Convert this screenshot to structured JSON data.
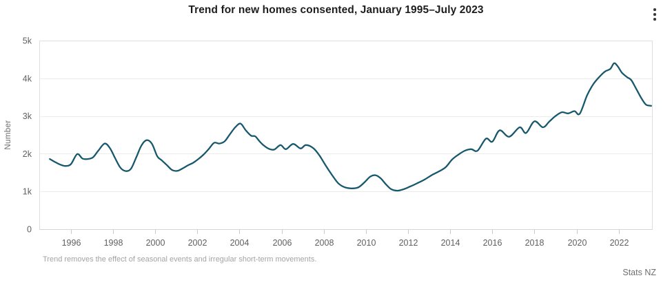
{
  "header": {
    "title": "Trend for new homes consented, January 1995–July 2023"
  },
  "menu": {
    "icon": "kebab-menu-icon"
  },
  "footer": {
    "note": "Trend removes the effect of seasonal events and irregular short-term movements.",
    "attribution": "Stats NZ"
  },
  "colors": {
    "line": "#17586c",
    "grid": "#ececec",
    "border": "#dedede",
    "axis_line": "#d4d4d4",
    "tick_mark": "#c9c9c9",
    "tick_text": "#5f5f5f",
    "title_text": "#1d1d1d",
    "footnote_text": "#a3a3a3"
  },
  "chart_data": {
    "type": "line",
    "title": "Trend for new homes consented, January 1995–July 2023",
    "xlabel": "",
    "ylabel": "Number",
    "legend": "none",
    "grid": true,
    "x_domain": [
      1994.5,
      2023.58
    ],
    "y_domain": [
      0,
      5000
    ],
    "x_ticks": [
      {
        "v": 1996,
        "label": "1996"
      },
      {
        "v": 1998,
        "label": "1998"
      },
      {
        "v": 2000,
        "label": "2000"
      },
      {
        "v": 2002,
        "label": "2002"
      },
      {
        "v": 2004,
        "label": "2004"
      },
      {
        "v": 2006,
        "label": "2006"
      },
      {
        "v": 2008,
        "label": "2008"
      },
      {
        "v": 2010,
        "label": "2010"
      },
      {
        "v": 2012,
        "label": "2012"
      },
      {
        "v": 2014,
        "label": "2014"
      },
      {
        "v": 2016,
        "label": "2016"
      },
      {
        "v": 2018,
        "label": "2018"
      },
      {
        "v": 2020,
        "label": "2020"
      },
      {
        "v": 2022,
        "label": "2022"
      }
    ],
    "y_ticks": [
      {
        "v": 0,
        "label": "0"
      },
      {
        "v": 1000,
        "label": "1k"
      },
      {
        "v": 2000,
        "label": "2k"
      },
      {
        "v": 3000,
        "label": "3k"
      },
      {
        "v": 4000,
        "label": "4k"
      },
      {
        "v": 5000,
        "label": "5k"
      }
    ],
    "series": [
      {
        "name": "Trend",
        "color": "#17586c",
        "x": [
          1995.0,
          1995.25,
          1995.5,
          1995.75,
          1996.0,
          1996.3,
          1996.55,
          1996.8,
          1997.05,
          1997.3,
          1997.6,
          1997.85,
          1998.1,
          1998.35,
          1998.6,
          1998.85,
          1999.1,
          1999.35,
          1999.6,
          1999.85,
          2000.1,
          2000.3,
          2000.55,
          2000.8,
          2001.05,
          2001.3,
          2001.55,
          2001.8,
          2002.05,
          2002.3,
          2002.55,
          2002.8,
          2003.05,
          2003.3,
          2003.55,
          2003.8,
          2004.05,
          2004.3,
          2004.55,
          2004.75,
          2004.95,
          2005.15,
          2005.4,
          2005.65,
          2005.95,
          2006.2,
          2006.55,
          2006.9,
          2007.15,
          2007.5,
          2007.8,
          2008.1,
          2008.4,
          2008.7,
          2009.0,
          2009.35,
          2009.65,
          2009.95,
          2010.2,
          2010.45,
          2010.7,
          2010.95,
          2011.2,
          2011.5,
          2011.8,
          2012.1,
          2012.45,
          2012.8,
          2013.15,
          2013.5,
          2013.8,
          2014.1,
          2014.4,
          2014.7,
          2015.0,
          2015.3,
          2015.7,
          2016.0,
          2016.35,
          2016.8,
          2017.3,
          2017.6,
          2018.0,
          2018.4,
          2018.7,
          2019.0,
          2019.3,
          2019.6,
          2019.9,
          2020.15,
          2020.5,
          2020.8,
          2021.1,
          2021.35,
          2021.6,
          2021.78,
          2021.95,
          2022.15,
          2022.4,
          2022.6,
          2022.85,
          2023.1,
          2023.3,
          2023.54
        ],
        "y": [
          1860,
          1780,
          1710,
          1675,
          1725,
          1990,
          1870,
          1860,
          1905,
          2080,
          2270,
          2150,
          1880,
          1630,
          1540,
          1600,
          1900,
          2220,
          2360,
          2260,
          1930,
          1830,
          1700,
          1570,
          1545,
          1610,
          1690,
          1760,
          1860,
          1980,
          2130,
          2290,
          2270,
          2330,
          2520,
          2700,
          2800,
          2620,
          2480,
          2460,
          2330,
          2220,
          2130,
          2110,
          2230,
          2120,
          2260,
          2140,
          2230,
          2150,
          1950,
          1680,
          1430,
          1210,
          1110,
          1080,
          1110,
          1250,
          1390,
          1430,
          1350,
          1190,
          1060,
          1020,
          1060,
          1130,
          1220,
          1320,
          1440,
          1540,
          1650,
          1850,
          1980,
          2080,
          2120,
          2080,
          2400,
          2320,
          2620,
          2450,
          2700,
          2550,
          2860,
          2700,
          2850,
          3000,
          3100,
          3070,
          3130,
          3060,
          3550,
          3850,
          4050,
          4180,
          4250,
          4400,
          4320,
          4150,
          4030,
          3950,
          3700,
          3450,
          3300,
          3270
        ]
      }
    ]
  }
}
